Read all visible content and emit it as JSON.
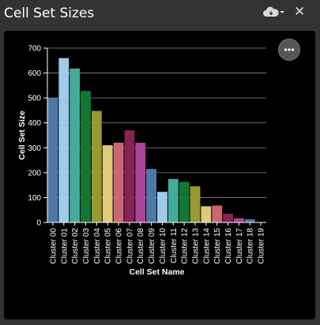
{
  "window": {
    "title": "Cell Set Sizes"
  },
  "icons": {
    "cloud": "cloud-download-icon",
    "close": "close-icon",
    "more": "more-options-icon"
  },
  "close_glyph": "✕",
  "chart_data": {
    "type": "bar",
    "title": "",
    "xlabel": "Cell Set Name",
    "ylabel": "Cell Set Size",
    "ylim": [
      0,
      700
    ],
    "yticks": [
      0,
      100,
      200,
      300,
      400,
      500,
      600,
      700
    ],
    "grid": true,
    "categories": [
      "Cluster 00",
      "Cluster 01",
      "Cluster 02",
      "Cluster 03",
      "Cluster 04",
      "Cluster 05",
      "Cluster 06",
      "Cluster 07",
      "Cluster 08",
      "Cluster 09",
      "Cluster 10",
      "Cluster 11",
      "Cluster 12",
      "Cluster 13",
      "Cluster 14",
      "Cluster 15",
      "Cluster 16",
      "Cluster 17",
      "Cluster 18",
      "Cluster 19"
    ],
    "values": [
      500,
      660,
      618,
      528,
      448,
      310,
      320,
      370,
      320,
      215,
      123,
      175,
      163,
      145,
      65,
      68,
      35,
      17,
      13,
      0
    ],
    "colors": [
      "#4e79a7",
      "#a0cbe8",
      "#44aa99",
      "#117733",
      "#999933",
      "#ddcc77",
      "#cc6677",
      "#882255",
      "#aa4499",
      "#4e79a7",
      "#a0cbe8",
      "#44aa99",
      "#117733",
      "#999933",
      "#ddcc77",
      "#cc6677",
      "#882255",
      "#aa4499",
      "#4e79a7",
      "#a0cbe8"
    ]
  }
}
